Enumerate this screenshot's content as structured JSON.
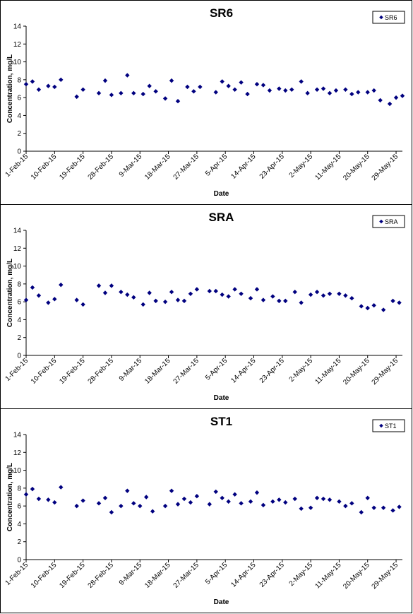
{
  "chart_data": [
    {
      "type": "scatter",
      "title": "SR6",
      "xlabel": "Date",
      "ylabel": "Concentration, mg/L",
      "ylim": [
        0,
        14
      ],
      "yticks": [
        "0",
        "2",
        "4",
        "6",
        "8",
        "10",
        "12",
        "14"
      ],
      "xlim": [
        "1-Feb-15",
        "31-May-15"
      ],
      "xticks": [
        "1-Feb-15",
        "10-Feb-15",
        "19-Feb-15",
        "28-Feb-15",
        "9-Mar-15",
        "18-Mar-15",
        "27-Mar-15",
        "5-Apr-15",
        "14-Apr-15",
        "23-Apr-15",
        "2-May-15",
        "11-May-15",
        "20-May-15",
        "29-May-15"
      ],
      "grid": false,
      "legend_position": "top-right",
      "marker": "diamond",
      "color": "#00007F",
      "series": [
        {
          "name": "SR6",
          "x": [
            "1-Feb-15",
            "3-Feb-15",
            "5-Feb-15",
            "8-Feb-15",
            "10-Feb-15",
            "12-Feb-15",
            "17-Feb-15",
            "19-Feb-15",
            "24-Feb-15",
            "26-Feb-15",
            "28-Feb-15",
            "3-Mar-15",
            "5-Mar-15",
            "7-Mar-15",
            "10-Mar-15",
            "12-Mar-15",
            "14-Mar-15",
            "17-Mar-15",
            "19-Mar-15",
            "21-Mar-15",
            "24-Mar-15",
            "26-Mar-15",
            "28-Mar-15",
            "2-Apr-15",
            "4-Apr-15",
            "6-Apr-15",
            "8-Apr-15",
            "10-Apr-15",
            "12-Apr-15",
            "15-Apr-15",
            "17-Apr-15",
            "19-Apr-15",
            "22-Apr-15",
            "24-Apr-15",
            "26-Apr-15",
            "29-Apr-15",
            "1-May-15",
            "4-May-15",
            "6-May-15",
            "8-May-15",
            "10-May-15",
            "13-May-15",
            "15-May-15",
            "17-May-15",
            "20-May-15",
            "22-May-15",
            "24-May-15",
            "27-May-15",
            "29-May-15",
            "31-May-15"
          ],
          "y": [
            7.5,
            7.8,
            6.9,
            7.3,
            7.2,
            8.0,
            6.1,
            6.9,
            6.5,
            7.9,
            6.3,
            6.5,
            8.5,
            6.5,
            6.4,
            7.3,
            6.7,
            5.9,
            7.9,
            5.6,
            7.2,
            6.7,
            7.2,
            6.6,
            7.8,
            7.3,
            6.9,
            7.7,
            6.4,
            7.5,
            7.4,
            6.8,
            7.0,
            6.8,
            6.9,
            7.8,
            6.5,
            6.9,
            7.0,
            6.5,
            6.8,
            6.9,
            6.4,
            6.6,
            6.6,
            6.8,
            5.7,
            5.3,
            6.0,
            6.2
          ]
        }
      ]
    },
    {
      "type": "scatter",
      "title": "SRA",
      "xlabel": "Date",
      "ylabel": "Concentration, mg/L",
      "ylim": [
        0,
        14
      ],
      "yticks": [
        "0",
        "2",
        "4",
        "6",
        "8",
        "10",
        "12",
        "14"
      ],
      "xlim": [
        "1-Feb-15",
        "31-May-15"
      ],
      "xticks": [
        "1-Feb-15",
        "10-Feb-15",
        "19-Feb-15",
        "28-Feb-15",
        "9-Mar-15",
        "18-Mar-15",
        "27-Mar-15",
        "5-Apr-15",
        "14-Apr-15",
        "23-Apr-15",
        "2-May-15",
        "11-May-15",
        "20-May-15",
        "29-May-15"
      ],
      "grid": false,
      "legend_position": "top-right",
      "marker": "diamond",
      "color": "#00007F",
      "series": [
        {
          "name": "SRA",
          "x": [
            "1-Feb-15",
            "3-Feb-15",
            "5-Feb-15",
            "8-Feb-15",
            "10-Feb-15",
            "12-Feb-15",
            "17-Feb-15",
            "19-Feb-15",
            "24-Feb-15",
            "26-Feb-15",
            "28-Feb-15",
            "3-Mar-15",
            "5-Mar-15",
            "7-Mar-15",
            "10-Mar-15",
            "12-Mar-15",
            "14-Mar-15",
            "17-Mar-15",
            "19-Mar-15",
            "21-Mar-15",
            "23-Mar-15",
            "25-Mar-15",
            "27-Mar-15",
            "31-Mar-15",
            "2-Apr-15",
            "4-Apr-15",
            "6-Apr-15",
            "8-Apr-15",
            "10-Apr-15",
            "13-Apr-15",
            "15-Apr-15",
            "17-Apr-15",
            "20-Apr-15",
            "22-Apr-15",
            "24-Apr-15",
            "27-Apr-15",
            "29-Apr-15",
            "2-May-15",
            "4-May-15",
            "6-May-15",
            "8-May-15",
            "11-May-15",
            "13-May-15",
            "15-May-15",
            "18-May-15",
            "20-May-15",
            "22-May-15",
            "25-May-15",
            "28-May-15",
            "30-May-15"
          ],
          "y": [
            6.2,
            7.6,
            6.7,
            5.9,
            6.3,
            7.9,
            6.2,
            5.7,
            7.8,
            7.0,
            7.8,
            7.1,
            6.8,
            6.5,
            5.7,
            7.0,
            6.1,
            6.0,
            7.1,
            6.2,
            6.1,
            6.9,
            7.4,
            7.2,
            7.2,
            6.8,
            6.6,
            7.4,
            6.9,
            6.4,
            7.4,
            6.2,
            6.6,
            6.1,
            6.1,
            7.1,
            5.9,
            6.8,
            7.1,
            6.7,
            6.9,
            6.9,
            6.7,
            6.4,
            5.5,
            5.3,
            5.6,
            5.1,
            6.1,
            5.9
          ]
        }
      ]
    },
    {
      "type": "scatter",
      "title": "ST1",
      "xlabel": "Date",
      "ylabel": "Concentration, mg/L",
      "ylim": [
        0,
        14
      ],
      "yticks": [
        "0",
        "2",
        "4",
        "6",
        "8",
        "10",
        "12",
        "14"
      ],
      "xlim": [
        "1-Feb-15",
        "31-May-15"
      ],
      "xticks": [
        "1-Feb-15",
        "10-Feb-15",
        "19-Feb-15",
        "28-Feb-15",
        "9-Mar-15",
        "18-Mar-15",
        "27-Mar-15",
        "5-Apr-15",
        "14-Apr-15",
        "23-Apr-15",
        "2-May-15",
        "11-May-15",
        "20-May-15",
        "29-May-15"
      ],
      "grid": false,
      "legend_position": "top-right",
      "marker": "diamond",
      "color": "#00007F",
      "series": [
        {
          "name": "ST1",
          "x": [
            "1-Feb-15",
            "3-Feb-15",
            "5-Feb-15",
            "8-Feb-15",
            "10-Feb-15",
            "12-Feb-15",
            "17-Feb-15",
            "19-Feb-15",
            "24-Feb-15",
            "26-Feb-15",
            "28-Feb-15",
            "3-Mar-15",
            "5-Mar-15",
            "7-Mar-15",
            "9-Mar-15",
            "11-Mar-15",
            "13-Mar-15",
            "17-Mar-15",
            "19-Mar-15",
            "21-Mar-15",
            "23-Mar-15",
            "25-Mar-15",
            "27-Mar-15",
            "31-Mar-15",
            "2-Apr-15",
            "4-Apr-15",
            "6-Apr-15",
            "8-Apr-15",
            "10-Apr-15",
            "13-Apr-15",
            "15-Apr-15",
            "17-Apr-15",
            "20-Apr-15",
            "22-Apr-15",
            "24-Apr-15",
            "27-Apr-15",
            "29-Apr-15",
            "2-May-15",
            "4-May-15",
            "6-May-15",
            "8-May-15",
            "11-May-15",
            "13-May-15",
            "15-May-15",
            "18-May-15",
            "20-May-15",
            "22-May-15",
            "25-May-15",
            "28-May-15",
            "30-May-15"
          ],
          "y": [
            7.3,
            7.9,
            6.8,
            6.7,
            6.4,
            8.1,
            6.0,
            6.6,
            6.3,
            6.9,
            5.3,
            6.0,
            7.7,
            6.3,
            6.0,
            7.0,
            5.4,
            6.0,
            7.7,
            6.2,
            6.8,
            6.4,
            7.1,
            6.2,
            7.6,
            6.9,
            6.5,
            7.3,
            6.3,
            6.5,
            7.5,
            6.1,
            6.5,
            6.7,
            6.4,
            6.8,
            5.7,
            5.8,
            6.9,
            6.8,
            6.7,
            6.5,
            6.0,
            6.3,
            5.3,
            6.9,
            5.8,
            5.8,
            5.5,
            5.9
          ]
        }
      ]
    }
  ]
}
